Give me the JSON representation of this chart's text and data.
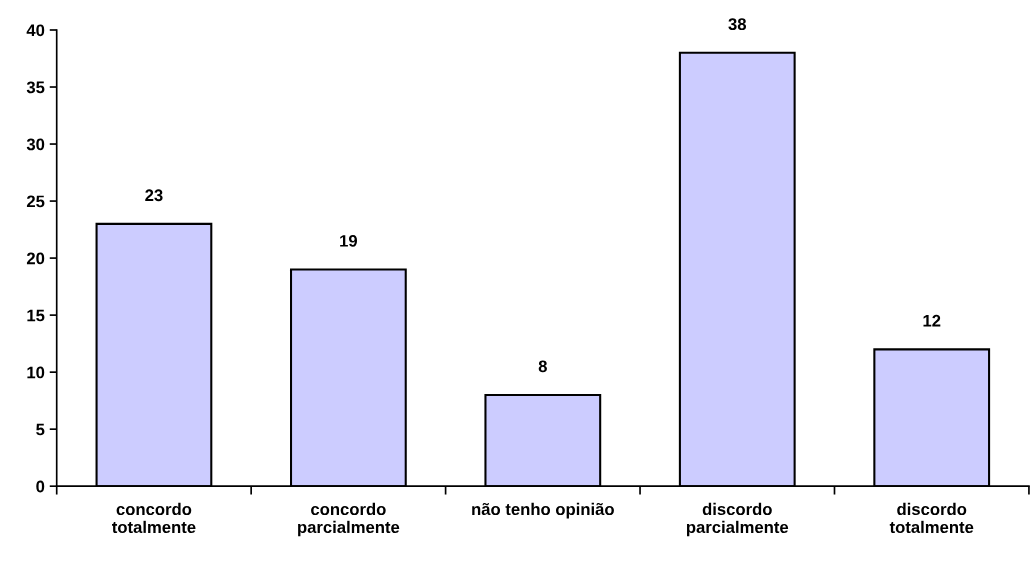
{
  "chart_data": {
    "type": "bar",
    "categories": [
      "concordo\ntotalmente",
      "concordo\nparcialmente",
      "não tenho opinião",
      "discordo\nparcialmente",
      "discordo\ntotalmente"
    ],
    "values": [
      23,
      19,
      8,
      38,
      12
    ],
    "color": "#ccccff",
    "ylim": [
      0,
      40
    ],
    "yticks": [
      0,
      5,
      10,
      15,
      20,
      25,
      30,
      35,
      40
    ],
    "data_labels": true,
    "grid": false,
    "legend": false
  }
}
